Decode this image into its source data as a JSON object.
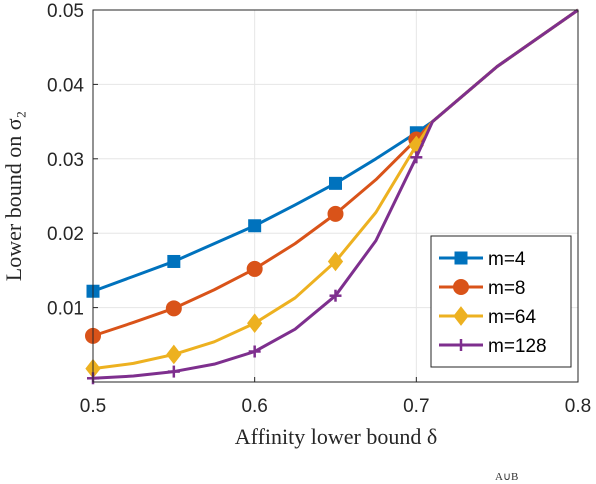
{
  "chart_data": {
    "type": "line",
    "xlabel": "Affinity lower bound δ",
    "ylabel": "Lower bound on σ₂",
    "xlim": [
      0.5,
      0.8
    ],
    "ylim": [
      0,
      0.05
    ],
    "xticks": [
      "0.5",
      "0.6",
      "0.7",
      "0.8"
    ],
    "yticks": [
      "0.01",
      "0.02",
      "0.03",
      "0.04",
      "0.05"
    ],
    "grid": true,
    "legend_position": "bottom-right",
    "series": [
      {
        "name": "m=4",
        "color": "#0072BD",
        "marker": "square",
        "curve": [
          [
            0.5,
            0.0122
          ],
          [
            0.525,
            0.0142
          ],
          [
            0.55,
            0.0162
          ],
          [
            0.575,
            0.0186
          ],
          [
            0.6,
            0.021
          ],
          [
            0.625,
            0.0238
          ],
          [
            0.65,
            0.0267
          ],
          [
            0.675,
            0.03
          ],
          [
            0.7,
            0.0335
          ],
          [
            0.71,
            0.035
          ],
          [
            0.75,
            0.0424
          ],
          [
            0.8,
            0.05
          ]
        ],
        "markers": [
          [
            0.5,
            0.0122
          ],
          [
            0.55,
            0.0162
          ],
          [
            0.6,
            0.021
          ],
          [
            0.65,
            0.0267
          ],
          [
            0.7,
            0.0335
          ]
        ]
      },
      {
        "name": "m=8",
        "color": "#D95319",
        "marker": "circle",
        "curve": [
          [
            0.5,
            0.0062
          ],
          [
            0.525,
            0.008
          ],
          [
            0.55,
            0.0099
          ],
          [
            0.575,
            0.0124
          ],
          [
            0.6,
            0.0152
          ],
          [
            0.625,
            0.0186
          ],
          [
            0.65,
            0.0226
          ],
          [
            0.675,
            0.0272
          ],
          [
            0.7,
            0.0326
          ],
          [
            0.71,
            0.035
          ],
          [
            0.75,
            0.0424
          ],
          [
            0.8,
            0.05
          ]
        ],
        "markers": [
          [
            0.5,
            0.0062
          ],
          [
            0.55,
            0.0099
          ],
          [
            0.6,
            0.0152
          ],
          [
            0.65,
            0.0226
          ],
          [
            0.7,
            0.0326
          ]
        ]
      },
      {
        "name": "m=64",
        "color": "#EDB120",
        "marker": "diamond",
        "curve": [
          [
            0.5,
            0.0018
          ],
          [
            0.525,
            0.0025
          ],
          [
            0.55,
            0.0037
          ],
          [
            0.575,
            0.0054
          ],
          [
            0.6,
            0.0079
          ],
          [
            0.625,
            0.0113
          ],
          [
            0.65,
            0.0162
          ],
          [
            0.675,
            0.0228
          ],
          [
            0.7,
            0.0318
          ],
          [
            0.71,
            0.035
          ],
          [
            0.75,
            0.0424
          ],
          [
            0.8,
            0.05
          ]
        ],
        "markers": [
          [
            0.5,
            0.0018
          ],
          [
            0.55,
            0.0037
          ],
          [
            0.6,
            0.0079
          ],
          [
            0.65,
            0.0162
          ],
          [
            0.7,
            0.0318
          ]
        ]
      },
      {
        "name": "m=128",
        "color": "#7E2F8E",
        "marker": "plus",
        "curve": [
          [
            0.5,
            0.0005
          ],
          [
            0.525,
            0.0008
          ],
          [
            0.55,
            0.0014
          ],
          [
            0.575,
            0.0024
          ],
          [
            0.6,
            0.0041
          ],
          [
            0.625,
            0.0071
          ],
          [
            0.65,
            0.0116
          ],
          [
            0.675,
            0.019
          ],
          [
            0.7,
            0.0302
          ],
          [
            0.71,
            0.035
          ],
          [
            0.75,
            0.0424
          ],
          [
            0.8,
            0.05
          ]
        ],
        "markers": [
          [
            0.5,
            0.0005
          ],
          [
            0.55,
            0.0014
          ],
          [
            0.6,
            0.0041
          ],
          [
            0.65,
            0.0116
          ],
          [
            0.7,
            0.0302
          ]
        ]
      }
    ]
  },
  "caption_fragment": "A∪B"
}
